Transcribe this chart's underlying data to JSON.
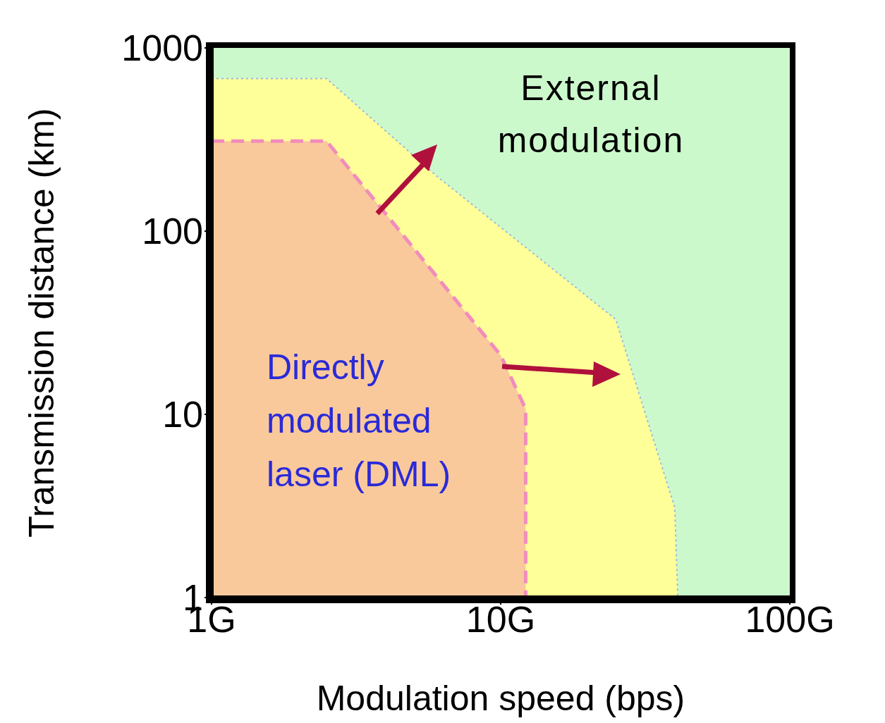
{
  "chart_data": {
    "type": "area",
    "xlabel": "Modulation speed (bps)",
    "ylabel": "Transmission distance (km)",
    "log": "xy",
    "xlim": [
      1,
      100
    ],
    "ylim": [
      1,
      1000
    ],
    "xticks": [
      {
        "value": 1,
        "label": "1G"
      },
      {
        "value": 10,
        "label": "10G"
      },
      {
        "value": 100,
        "label": "100G"
      }
    ],
    "yticks": [
      1,
      10,
      100,
      1000
    ],
    "series": [
      {
        "color": "#f9c99c",
        "line_style": "dashed",
        "x": [
          1,
          2.5,
          10,
          12.2,
          12.2
        ],
        "values": [
          310,
          310,
          21,
          10.7,
          1
        ]
      },
      {
        "color": "#ffff99",
        "line_style": "dotted",
        "x": [
          1,
          2.5,
          6,
          25,
          40,
          41
        ],
        "values": [
          680,
          680,
          200,
          33,
          3.1,
          1
        ]
      }
    ],
    "bands": [
      {
        "axis": "x",
        "from": 1,
        "to": 100,
        "color": "#ccf9cc"
      }
    ],
    "annotations": [
      "External modulation",
      "Directly modulated laser (DML)"
    ]
  }
}
